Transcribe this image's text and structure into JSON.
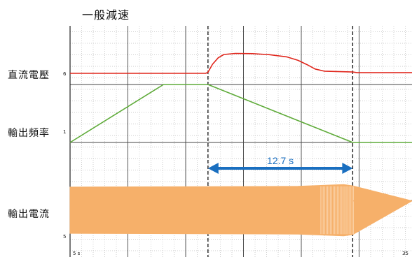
{
  "title": "一般減速",
  "row_labels": {
    "dc_voltage": "直流電壓",
    "output_frequency": "輸出頻率",
    "output_current": "輸出電流"
  },
  "chart_data": {
    "type": "line",
    "title": "一般減速",
    "grid": true,
    "x_unit": "s",
    "xlim": [
      5,
      35
    ],
    "x_tick_labels": [
      {
        "x": 5,
        "label": "5 s"
      },
      {
        "x": 35,
        "label": "35"
      }
    ],
    "channel_markers": [
      {
        "channel": "dc_voltage",
        "label": "6"
      },
      {
        "channel": "output_frequency",
        "label": "1"
      },
      {
        "channel": "output_current",
        "label": "5"
      }
    ],
    "events": {
      "decel_start": 17.1,
      "decel_end": 29.8
    },
    "annotation": {
      "label": "12.7 s",
      "from": 17.1,
      "to": 29.8,
      "color": "#1a6fc0"
    },
    "series": [
      {
        "key": "dc_voltage",
        "color": "#e0261c",
        "points": [
          [
            5,
            0
          ],
          [
            16.9,
            0
          ],
          [
            17.1,
            0.05
          ],
          [
            17.5,
            0.42
          ],
          [
            18.0,
            0.72
          ],
          [
            18.5,
            0.87
          ],
          [
            19.5,
            0.92
          ],
          [
            21.0,
            0.91
          ],
          [
            22.5,
            0.86
          ],
          [
            24.0,
            0.76
          ],
          [
            25.0,
            0.6
          ],
          [
            25.8,
            0.4
          ],
          [
            26.5,
            0.2
          ],
          [
            27.3,
            0.1
          ],
          [
            29.8,
            0.06
          ],
          [
            30.2,
            0.03
          ],
          [
            35,
            0.03
          ]
        ]
      },
      {
        "key": "output_frequency",
        "color": "#5fab3a",
        "points": [
          [
            5,
            0
          ],
          [
            13.2,
            1
          ],
          [
            17.1,
            1
          ],
          [
            29.8,
            0
          ],
          [
            35,
            0
          ]
        ]
      },
      {
        "key": "output_current",
        "color": "#f6b06a",
        "style": "envelope",
        "points": [
          [
            5,
            0.92
          ],
          [
            25.0,
            0.95
          ],
          [
            29.0,
            1.02
          ],
          [
            29.8,
            0.97
          ],
          [
            35,
            0.37
          ]
        ],
        "points_lower": [
          [
            5,
            -0.92
          ],
          [
            25.0,
            -0.95
          ],
          [
            29.0,
            -1.02
          ],
          [
            29.8,
            -0.97
          ],
          [
            35,
            0.37
          ]
        ]
      }
    ]
  }
}
